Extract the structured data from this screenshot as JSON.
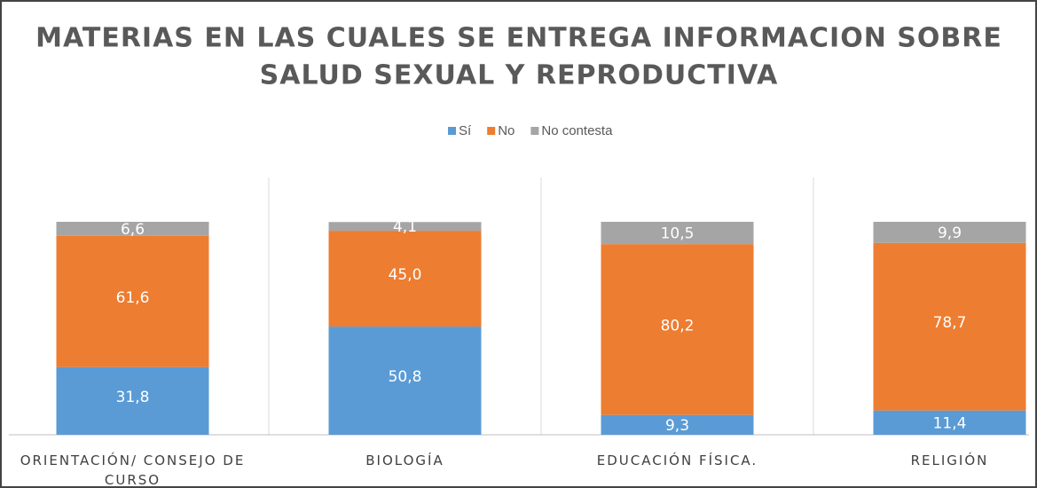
{
  "chart_data": {
    "type": "stacked_bar",
    "title": [
      "MATERIAS EN LAS CUALES SE ENTREGA INFORMACION SOBRE",
      "SALUD SEXUAL Y REPRODUCTIVA"
    ],
    "categories": [
      "ORIENTACIÓN/ CONSEJO DE CURSO",
      "BIOLOGÍA",
      "EDUCACIÓN FÍSICA.",
      "RELIGIÓN"
    ],
    "series": [
      {
        "name": "Sí",
        "color": "#5b9bd5",
        "values": [
          31.8,
          50.8,
          9.3,
          11.4
        ],
        "value_labels": [
          "31,8",
          "50,8",
          "9,3",
          "11,4"
        ]
      },
      {
        "name": "No",
        "color": "#ed7d31",
        "values": [
          61.6,
          45.0,
          80.2,
          78.7
        ],
        "value_labels": [
          "61,6",
          "45,0",
          "80,2",
          "78,7"
        ]
      },
      {
        "name": "No contesta",
        "color": "#a5a5a5",
        "values": [
          6.6,
          4.1,
          10.5,
          9.9
        ],
        "value_labels": [
          "6,6",
          "4,1",
          "10,5",
          "9,9"
        ]
      }
    ],
    "ylim": [
      0,
      100
    ],
    "legend": "top"
  }
}
